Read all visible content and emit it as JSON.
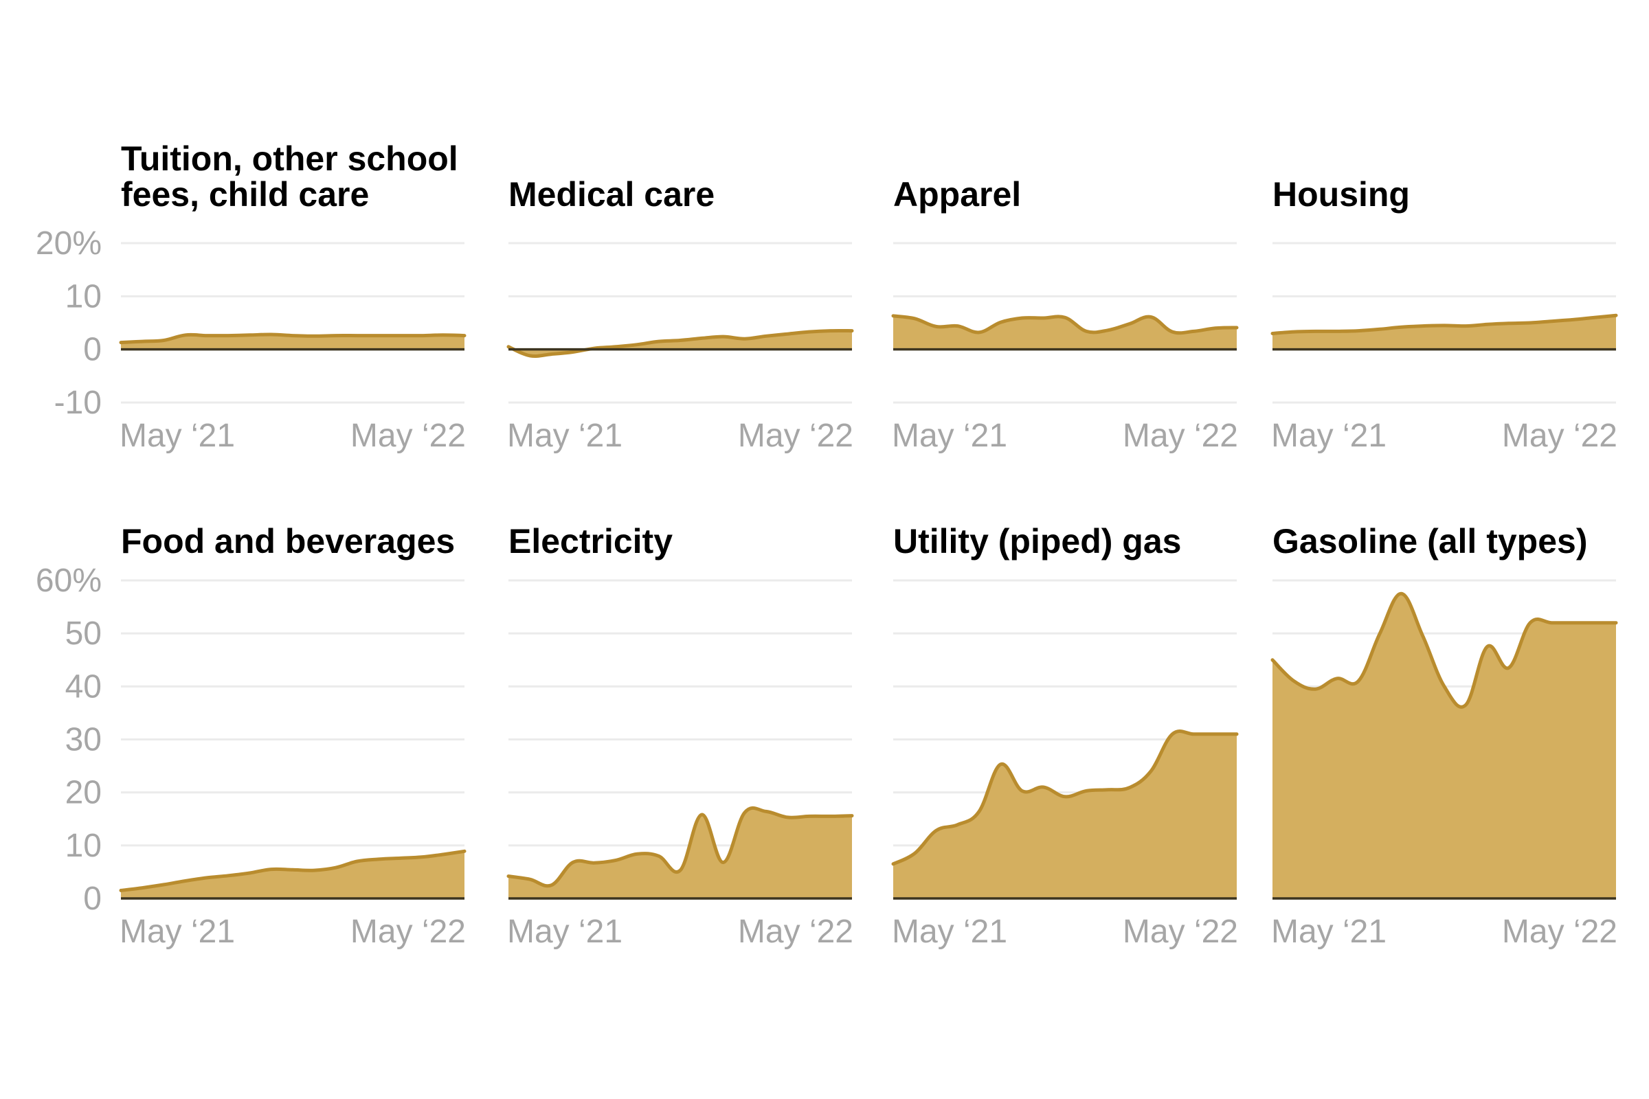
{
  "colors": {
    "fill": "#d4af5f",
    "line": "#b98c2e",
    "grid": "#ebebeb",
    "zero_line": "#3d3520",
    "tick_text": "#a6a6a6",
    "title_text": "#000000"
  },
  "chart_data": [
    {
      "type": "area",
      "row": 0,
      "col": 0,
      "title": [
        "Tuition, other school",
        "fees, child care"
      ],
      "ylim": [
        -10,
        20
      ],
      "yticks": [
        20,
        10,
        0,
        -10
      ],
      "ytick_labels": [
        "20%",
        "10",
        "0",
        "-10"
      ],
      "xlim": [
        0,
        16
      ],
      "xticks": [
        {
          "x": 3,
          "label": "May ‘21"
        },
        {
          "x": 15,
          "label": "May ‘22"
        }
      ],
      "x": [
        0,
        1,
        2,
        3,
        4,
        5,
        6,
        7,
        8,
        9,
        10,
        11,
        12,
        13,
        14,
        15,
        16
      ],
      "values": [
        1.3,
        1.5,
        1.7,
        2.7,
        2.6,
        2.6,
        2.7,
        2.8,
        2.6,
        2.5,
        2.6,
        2.6,
        2.6,
        2.6,
        2.6,
        2.7,
        2.6
      ]
    },
    {
      "type": "area",
      "row": 0,
      "col": 1,
      "title": [
        "Medical care"
      ],
      "ylim": [
        -10,
        20
      ],
      "yticks": [
        20,
        10,
        0,
        -10
      ],
      "ytick_labels": [
        "20%",
        "10",
        "0",
        "-10"
      ],
      "xlim": [
        0,
        16
      ],
      "xticks": [
        {
          "x": 3,
          "label": "May ‘21"
        },
        {
          "x": 15,
          "label": "May ‘22"
        }
      ],
      "x": [
        0,
        1,
        2,
        3,
        4,
        5,
        6,
        7,
        8,
        9,
        10,
        11,
        12,
        13,
        14,
        15,
        16
      ],
      "values": [
        0.5,
        -1.2,
        -0.9,
        -0.5,
        0.2,
        0.5,
        0.9,
        1.5,
        1.7,
        2.1,
        2.4,
        2.0,
        2.5,
        2.9,
        3.3,
        3.5,
        3.5
      ]
    },
    {
      "type": "area",
      "row": 0,
      "col": 2,
      "title": [
        "Apparel"
      ],
      "ylim": [
        -10,
        20
      ],
      "yticks": [
        20,
        10,
        0,
        -10
      ],
      "ytick_labels": [
        "20%",
        "10",
        "0",
        "-10"
      ],
      "xlim": [
        0,
        16
      ],
      "xticks": [
        {
          "x": 3,
          "label": "May ‘21"
        },
        {
          "x": 15,
          "label": "May ‘22"
        }
      ],
      "x": [
        0,
        1,
        2,
        3,
        4,
        5,
        6,
        7,
        8,
        9,
        10,
        11,
        12,
        13,
        14,
        15,
        16
      ],
      "values": [
        6.3,
        5.8,
        4.3,
        4.4,
        3.2,
        5.1,
        5.9,
        5.9,
        6.0,
        3.4,
        3.6,
        4.8,
        6.1,
        3.3,
        3.4,
        4.0,
        4.1
      ]
    },
    {
      "type": "area",
      "row": 0,
      "col": 3,
      "title": [
        "Housing"
      ],
      "ylim": [
        -10,
        20
      ],
      "yticks": [
        20,
        10,
        0,
        -10
      ],
      "ytick_labels": [
        "20%",
        "10",
        "0",
        "-10"
      ],
      "xlim": [
        0,
        16
      ],
      "xticks": [
        {
          "x": 3,
          "label": "May ‘21"
        },
        {
          "x": 15,
          "label": "May ‘22"
        }
      ],
      "x": [
        0,
        1,
        2,
        3,
        4,
        5,
        6,
        7,
        8,
        9,
        10,
        11,
        12,
        13,
        14,
        15,
        16
      ],
      "values": [
        3.0,
        3.3,
        3.4,
        3.4,
        3.5,
        3.8,
        4.2,
        4.4,
        4.5,
        4.4,
        4.7,
        4.9,
        5.0,
        5.3,
        5.6,
        6.0,
        6.4
      ]
    },
    {
      "type": "area",
      "row": 1,
      "col": 0,
      "title": [
        "Food and beverages"
      ],
      "ylim": [
        0,
        60
      ],
      "yticks": [
        60,
        50,
        40,
        30,
        20,
        10,
        0
      ],
      "ytick_labels": [
        "60%",
        "50",
        "40",
        "30",
        "20",
        "10",
        "0"
      ],
      "xlim": [
        0,
        16
      ],
      "xticks": [
        {
          "x": 3,
          "label": "May ‘21"
        },
        {
          "x": 15,
          "label": "May ‘22"
        }
      ],
      "x": [
        0,
        1,
        2,
        3,
        4,
        5,
        6,
        7,
        8,
        9,
        10,
        11,
        12,
        13,
        14,
        15,
        16
      ],
      "values": [
        1.5,
        2.0,
        2.6,
        3.3,
        3.9,
        4.3,
        4.8,
        5.5,
        5.4,
        5.3,
        5.8,
        7.0,
        7.4,
        7.6,
        7.8,
        8.3,
        8.9
      ]
    },
    {
      "type": "area",
      "row": 1,
      "col": 1,
      "title": [
        "Electricity"
      ],
      "ylim": [
        0,
        60
      ],
      "yticks": [
        60,
        50,
        40,
        30,
        20,
        10,
        0
      ],
      "ytick_labels": [
        "60%",
        "50",
        "40",
        "30",
        "20",
        "10",
        "0"
      ],
      "xlim": [
        0,
        16
      ],
      "xticks": [
        {
          "x": 3,
          "label": "May ‘21"
        },
        {
          "x": 15,
          "label": "May ‘22"
        }
      ],
      "x": [
        0,
        1,
        2,
        3,
        4,
        5,
        6,
        7,
        8,
        9,
        10,
        11,
        12,
        13,
        14,
        15,
        16
      ],
      "values": [
        4.2,
        3.6,
        2.5,
        6.8,
        6.7,
        7.2,
        8.4,
        8.0,
        5.3,
        15.8,
        6.8,
        16.2,
        16.4,
        15.3,
        15.5,
        15.5,
        15.6
      ]
    },
    {
      "type": "area",
      "row": 1,
      "col": 2,
      "title": [
        "Utility (piped) gas"
      ],
      "ylim": [
        0,
        60
      ],
      "yticks": [
        60,
        50,
        40,
        30,
        20,
        10,
        0
      ],
      "ytick_labels": [
        "60%",
        "50",
        "40",
        "30",
        "20",
        "10",
        "0"
      ],
      "xlim": [
        0,
        16
      ],
      "xticks": [
        {
          "x": 3,
          "label": "May ‘21"
        },
        {
          "x": 15,
          "label": "May ‘22"
        }
      ],
      "x": [
        0,
        1,
        2,
        3,
        4,
        5,
        6,
        7,
        8,
        9,
        10,
        11,
        12,
        13,
        14,
        15,
        16
      ],
      "values": [
        6.5,
        8.5,
        12.8,
        13.9,
        16.4,
        25.3,
        20.3,
        21.0,
        19.2,
        20.3,
        20.5,
        20.9,
        24.0,
        31.0,
        31.0,
        31.0,
        31.0
      ]
    },
    {
      "type": "area",
      "row": 1,
      "col": 3,
      "title": [
        "Gasoline (all types)"
      ],
      "ylim": [
        0,
        60
      ],
      "yticks": [
        60,
        50,
        40,
        30,
        20,
        10,
        0
      ],
      "ytick_labels": [
        "60%",
        "50",
        "40",
        "30",
        "20",
        "10",
        "0"
      ],
      "xlim": [
        0,
        16
      ],
      "xticks": [
        {
          "x": 3,
          "label": "May ‘21"
        },
        {
          "x": 15,
          "label": "May ‘22"
        }
      ],
      "x": [
        0,
        1,
        2,
        3,
        4,
        5,
        6,
        7,
        8,
        9,
        10,
        11,
        12,
        13,
        14,
        15,
        16
      ],
      "values": [
        45.0,
        41.0,
        39.5,
        41.5,
        41.0,
        50.0,
        57.5,
        49.5,
        40.0,
        36.5,
        47.5,
        43.5,
        52.0,
        52.0,
        52.0,
        52.0,
        52.0
      ]
    }
  ]
}
